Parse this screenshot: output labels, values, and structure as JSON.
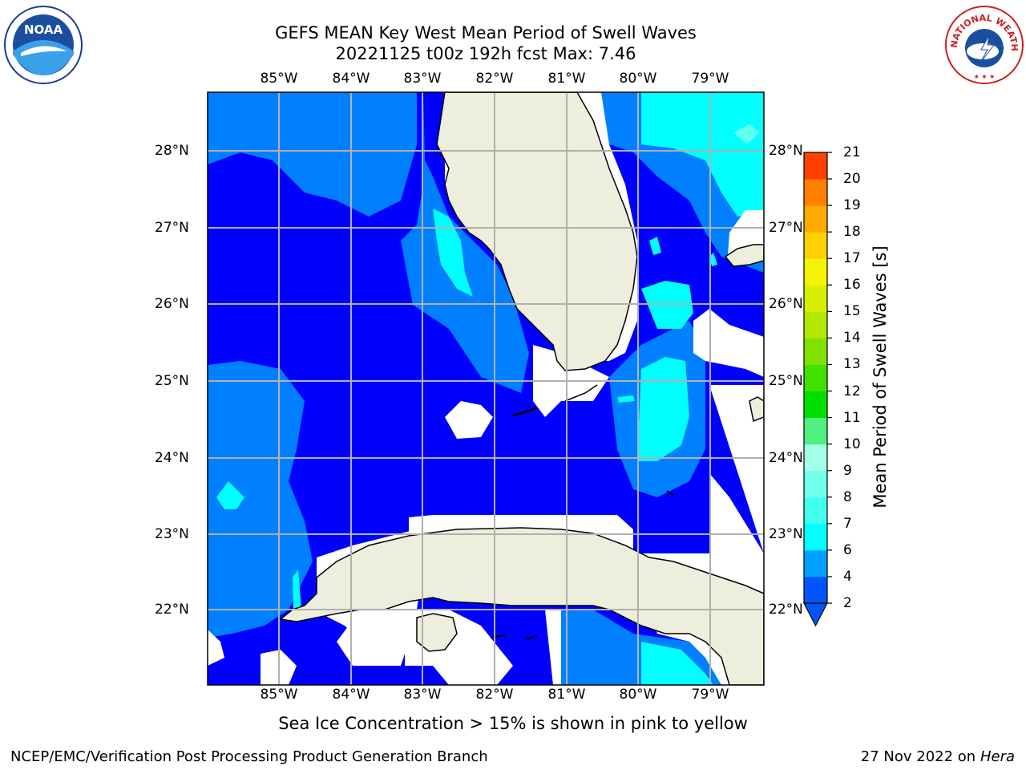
{
  "title": {
    "line1": "GEFS MEAN Key West Mean Period of Swell Waves",
    "line2": "20221125 t00z 192h fcst   Max: 7.46"
  },
  "map": {
    "lon_labels": [
      "85°W",
      "84°W",
      "83°W",
      "82°W",
      "81°W",
      "80°W",
      "79°W"
    ],
    "lat_labels": [
      "28°N",
      "27°N",
      "26°N",
      "25°N",
      "24°N",
      "23°N",
      "22°N"
    ],
    "lat_labels_right": [
      "28°N",
      "27°N",
      "26°N",
      "25°N",
      "24°N",
      "23°N",
      "22°N"
    ],
    "land_color": "#eeeedc",
    "grid_color": "#b0b0b0"
  },
  "colorbar": {
    "label": "Mean Period of Swell Waves [s]",
    "ticks": [
      "2",
      "4",
      "6",
      "7",
      "8",
      "9",
      "10",
      "11",
      "12",
      "13",
      "14",
      "15",
      "16",
      "17",
      "18",
      "19",
      "20",
      "21"
    ],
    "colors": [
      "#0055ff",
      "#00a0ff",
      "#00ffff",
      "#40ffee",
      "#70ffe8",
      "#a0ffe6",
      "#50f080",
      "#00e000",
      "#40e000",
      "#80e000",
      "#b0e800",
      "#d8ef00",
      "#f4f400",
      "#ffd000",
      "#ffaa00",
      "#ff8000",
      "#ff4000",
      "#ff0000"
    ]
  },
  "footer": {
    "note": "Sea Ice Concentration > 15% is shown in pink to yellow",
    "credit_left": "NCEP/EMC/Verification Post Processing Product Generation Branch",
    "credit_right_date": "27 Nov 2022 on",
    "credit_right_machine": "Hera"
  },
  "logos": {
    "noaa_text": "NOAA",
    "nws_text": "NATIONAL WEATHER SERVICE"
  }
}
